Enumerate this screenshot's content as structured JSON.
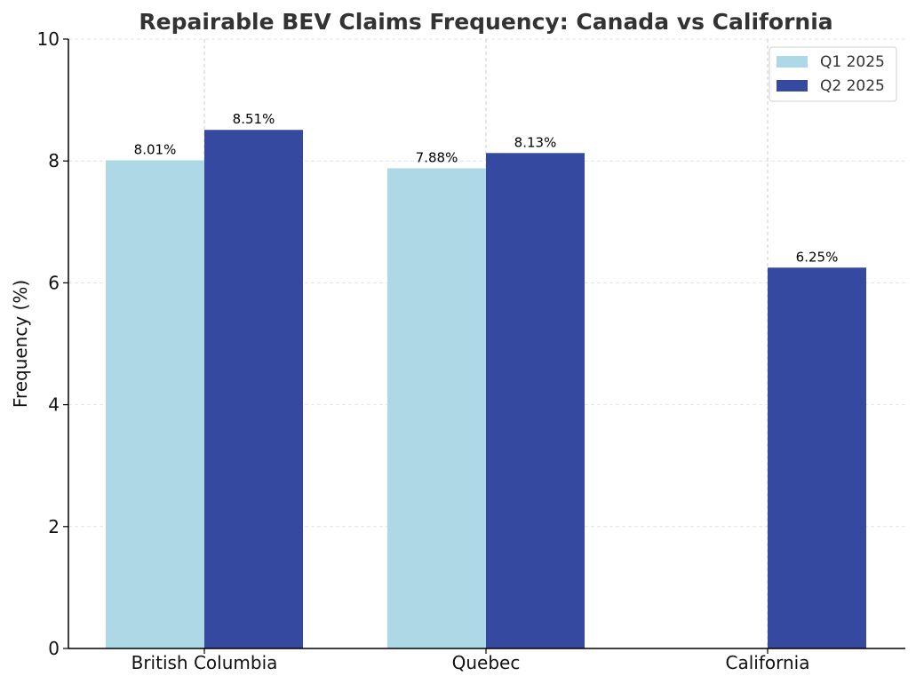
{
  "chart_data": {
    "type": "bar",
    "title": "Repairable BEV Claims Frequency: Canada vs California",
    "xlabel": "",
    "ylabel": "Frequency (%)",
    "ylim": [
      0,
      10
    ],
    "yticks": [
      0,
      2,
      4,
      6,
      8,
      10
    ],
    "categories": [
      "British Columbia",
      "Quebec",
      "California"
    ],
    "series": [
      {
        "name": "Q1 2025",
        "color": "#add8e6",
        "values": [
          8.01,
          7.88,
          null
        ],
        "labels": [
          "8.01%",
          "7.88%",
          null
        ]
      },
      {
        "name": "Q2 2025",
        "color": "#34499f",
        "values": [
          8.51,
          8.13,
          6.25
        ],
        "labels": [
          "8.51%",
          "8.13%",
          "6.25%"
        ]
      }
    ],
    "grid": true,
    "legend_position": "top-right"
  }
}
